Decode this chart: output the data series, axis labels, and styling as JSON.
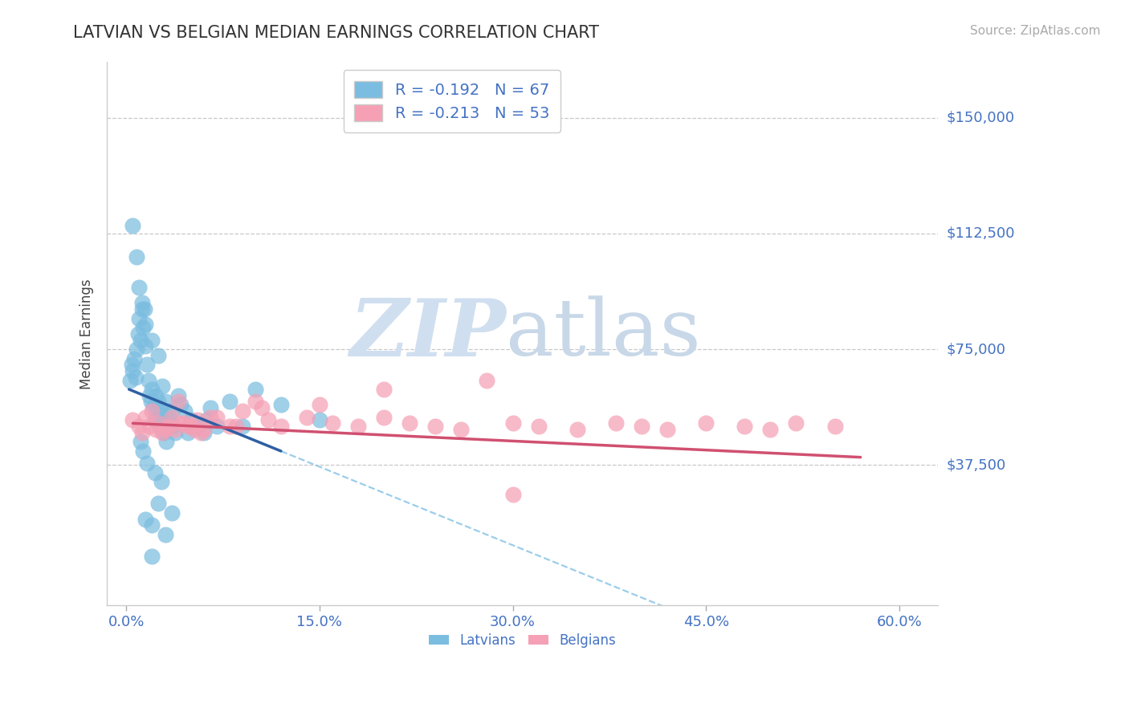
{
  "title": "LATVIAN VS BELGIAN MEDIAN EARNINGS CORRELATION CHART",
  "source": "Source: ZipAtlas.com",
  "xlabel_vals": [
    0,
    15,
    30,
    45,
    60
  ],
  "xlabel_ticks": [
    "0.0%",
    "15.0%",
    "30.0%",
    "45.0%",
    "60.0%"
  ],
  "ylabel_ticks": [
    0,
    37500,
    75000,
    112500,
    150000
  ],
  "ylabel_labels": [
    "",
    "$37,500",
    "$75,000",
    "$112,500",
    "$150,000"
  ],
  "xlim": [
    -1.5,
    63
  ],
  "ylim": [
    -8000,
    168000
  ],
  "latvian_R": -0.192,
  "latvian_N": 67,
  "belgian_R": -0.213,
  "belgian_N": 53,
  "latvian_color": "#7bbde0",
  "belgian_color": "#f5a0b5",
  "latvian_line_color": "#2e5fa3",
  "belgian_line_color": "#d05070",
  "dashed_line_color": "#90c8e8",
  "legend_latvian_label": "Latvians",
  "legend_belgian_label": "Belgians",
  "lv_line_x0": 0.2,
  "lv_line_y0": 62000,
  "lv_line_x1": 12.0,
  "lv_line_y1": 42000,
  "lv_line_solid_end": 12.0,
  "lv_line_dash_end": 61.0,
  "be_line_x0": 0.5,
  "be_line_y0": 51000,
  "be_line_x1": 57.0,
  "be_line_y1": 40000,
  "lv_scatter_x": [
    0.3,
    0.4,
    0.5,
    0.6,
    0.7,
    0.8,
    0.9,
    1.0,
    1.1,
    1.2,
    1.3,
    1.4,
    1.5,
    1.6,
    1.7,
    1.8,
    1.9,
    2.0,
    2.1,
    2.2,
    2.3,
    2.4,
    2.5,
    2.6,
    2.7,
    2.8,
    2.9,
    3.0,
    3.2,
    3.4,
    3.6,
    3.8,
    4.0,
    4.2,
    4.5,
    5.0,
    5.5,
    6.0,
    6.5,
    7.0,
    8.0,
    9.0,
    10.0,
    12.0,
    15.0,
    1.0,
    1.2,
    1.5,
    2.0,
    2.5,
    0.5,
    0.8,
    1.1,
    1.3,
    1.6,
    2.2,
    2.7,
    3.1,
    3.5,
    4.8,
    6.2,
    2.0,
    3.0,
    1.5,
    2.5,
    3.5,
    2.0
  ],
  "lv_scatter_y": [
    65000,
    70000,
    68000,
    72000,
    66000,
    75000,
    80000,
    85000,
    78000,
    90000,
    82000,
    88000,
    76000,
    70000,
    65000,
    60000,
    58000,
    62000,
    56000,
    52000,
    60000,
    55000,
    58000,
    50000,
    54000,
    63000,
    48000,
    58000,
    55000,
    52000,
    50000,
    48000,
    60000,
    57000,
    55000,
    52000,
    50000,
    48000,
    56000,
    50000,
    58000,
    50000,
    62000,
    57000,
    52000,
    95000,
    88000,
    83000,
    78000,
    73000,
    115000,
    105000,
    45000,
    42000,
    38000,
    35000,
    32000,
    45000,
    55000,
    48000,
    52000,
    18000,
    15000,
    20000,
    25000,
    22000,
    8000
  ],
  "be_scatter_x": [
    0.5,
    1.0,
    1.5,
    2.0,
    2.5,
    3.0,
    3.5,
    4.0,
    4.5,
    5.0,
    5.5,
    6.0,
    7.0,
    8.0,
    9.0,
    10.0,
    11.0,
    12.0,
    14.0,
    16.0,
    18.0,
    20.0,
    22.0,
    24.0,
    26.0,
    28.0,
    30.0,
    32.0,
    35.0,
    38.0,
    40.0,
    42.0,
    45.0,
    48.0,
    50.0,
    52.0,
    55.0,
    1.2,
    1.8,
    2.3,
    2.8,
    3.3,
    3.8,
    4.3,
    4.8,
    5.3,
    5.8,
    6.5,
    8.5,
    10.5,
    15.0,
    20.0,
    30.0
  ],
  "be_scatter_y": [
    52000,
    50000,
    53000,
    55000,
    51000,
    49000,
    53000,
    58000,
    51000,
    50000,
    52000,
    49000,
    53000,
    50000,
    55000,
    58000,
    52000,
    50000,
    53000,
    51000,
    50000,
    53000,
    51000,
    50000,
    49000,
    65000,
    51000,
    50000,
    49000,
    51000,
    50000,
    49000,
    51000,
    50000,
    49000,
    51000,
    50000,
    48000,
    50000,
    49000,
    48000,
    50000,
    49000,
    51000,
    50000,
    49000,
    48000,
    53000,
    50000,
    56000,
    57000,
    62000,
    28000
  ]
}
